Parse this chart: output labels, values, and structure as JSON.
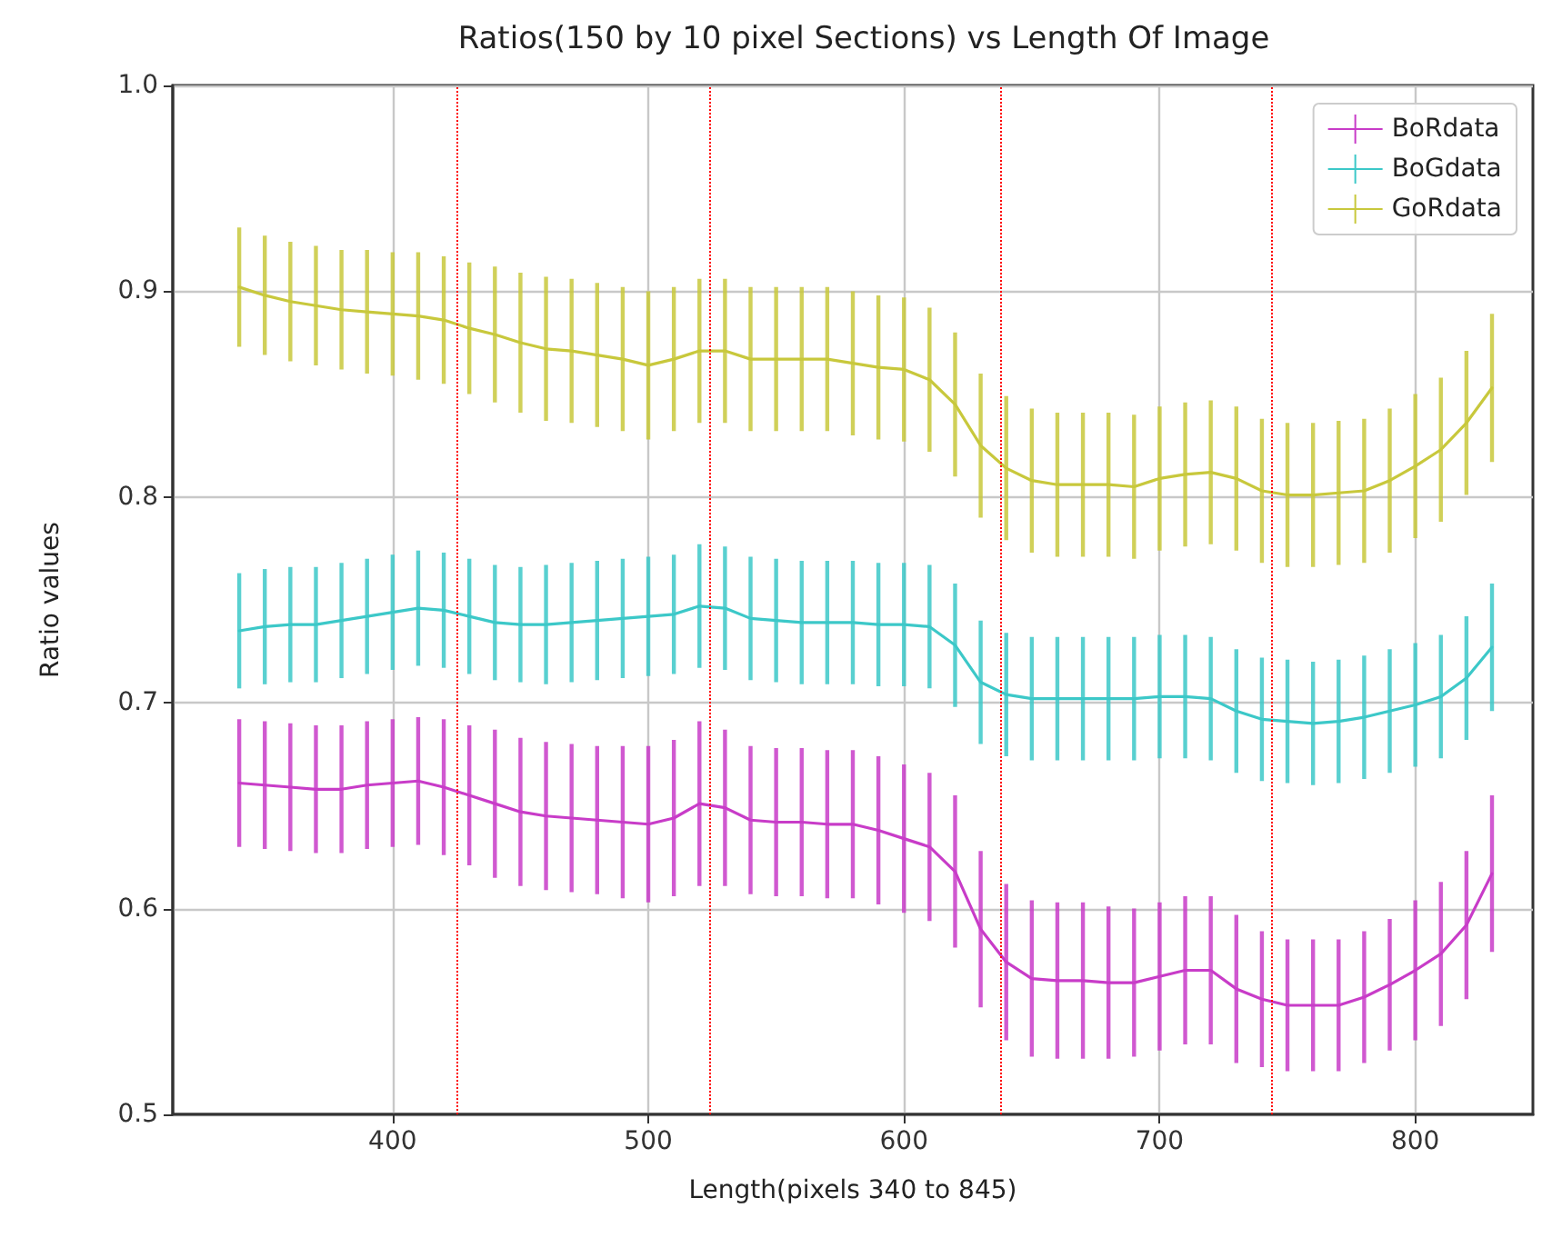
{
  "chart_data": {
    "type": "line",
    "title": "Ratios(150 by 10 pixel Sections) vs Length Of Image",
    "xlabel": "Length(pixels 340 to 845)",
    "ylabel": "Ratio values",
    "x": [
      340,
      350,
      360,
      370,
      380,
      390,
      400,
      410,
      420,
      430,
      440,
      450,
      460,
      470,
      480,
      490,
      500,
      510,
      520,
      530,
      540,
      550,
      560,
      570,
      580,
      590,
      600,
      610,
      620,
      630,
      640,
      650,
      660,
      670,
      680,
      690,
      700,
      710,
      720,
      730,
      740,
      750,
      760,
      770,
      780,
      790,
      800,
      810,
      820,
      830
    ],
    "series": [
      {
        "name": "BoRdata",
        "color": "#c83cc8",
        "values": [
          0.661,
          0.66,
          0.659,
          0.658,
          0.658,
          0.66,
          0.661,
          0.662,
          0.659,
          0.655,
          0.651,
          0.647,
          0.645,
          0.644,
          0.643,
          0.642,
          0.641,
          0.644,
          0.651,
          0.649,
          0.643,
          0.642,
          0.642,
          0.641,
          0.641,
          0.638,
          0.634,
          0.63,
          0.618,
          0.59,
          0.574,
          0.566,
          0.565,
          0.565,
          0.564,
          0.564,
          0.567,
          0.57,
          0.57,
          0.561,
          0.556,
          0.553,
          0.553,
          0.553,
          0.557,
          0.563,
          0.57,
          0.578,
          0.592,
          0.617
        ],
        "errors": [
          0.031,
          0.031,
          0.031,
          0.031,
          0.031,
          0.031,
          0.031,
          0.031,
          0.033,
          0.034,
          0.036,
          0.036,
          0.036,
          0.036,
          0.036,
          0.037,
          0.038,
          0.038,
          0.04,
          0.038,
          0.036,
          0.036,
          0.036,
          0.036,
          0.036,
          0.036,
          0.036,
          0.036,
          0.037,
          0.038,
          0.038,
          0.038,
          0.038,
          0.038,
          0.037,
          0.036,
          0.036,
          0.036,
          0.036,
          0.036,
          0.033,
          0.032,
          0.032,
          0.032,
          0.032,
          0.032,
          0.034,
          0.035,
          0.036,
          0.038
        ]
      },
      {
        "name": "BoGdata",
        "color": "#3cc8c8",
        "values": [
          0.735,
          0.737,
          0.738,
          0.738,
          0.74,
          0.742,
          0.744,
          0.746,
          0.745,
          0.742,
          0.739,
          0.738,
          0.738,
          0.739,
          0.74,
          0.741,
          0.742,
          0.743,
          0.747,
          0.746,
          0.741,
          0.74,
          0.739,
          0.739,
          0.739,
          0.738,
          0.738,
          0.737,
          0.728,
          0.71,
          0.704,
          0.702,
          0.702,
          0.702,
          0.702,
          0.702,
          0.703,
          0.703,
          0.702,
          0.696,
          0.692,
          0.691,
          0.69,
          0.691,
          0.693,
          0.696,
          0.699,
          0.703,
          0.712,
          0.727
        ],
        "errors": [
          0.028,
          0.028,
          0.028,
          0.028,
          0.028,
          0.028,
          0.028,
          0.028,
          0.028,
          0.028,
          0.028,
          0.028,
          0.029,
          0.029,
          0.029,
          0.029,
          0.029,
          0.029,
          0.03,
          0.03,
          0.03,
          0.03,
          0.03,
          0.03,
          0.03,
          0.03,
          0.03,
          0.03,
          0.03,
          0.03,
          0.03,
          0.03,
          0.03,
          0.03,
          0.03,
          0.03,
          0.03,
          0.03,
          0.03,
          0.03,
          0.03,
          0.03,
          0.03,
          0.03,
          0.03,
          0.03,
          0.03,
          0.03,
          0.03,
          0.031
        ]
      },
      {
        "name": "GoRdata",
        "color": "#c8c83c",
        "values": [
          0.902,
          0.898,
          0.895,
          0.893,
          0.891,
          0.89,
          0.889,
          0.888,
          0.886,
          0.882,
          0.879,
          0.875,
          0.872,
          0.871,
          0.869,
          0.867,
          0.864,
          0.867,
          0.871,
          0.871,
          0.867,
          0.867,
          0.867,
          0.867,
          0.865,
          0.863,
          0.862,
          0.857,
          0.845,
          0.825,
          0.814,
          0.808,
          0.806,
          0.806,
          0.806,
          0.805,
          0.809,
          0.811,
          0.812,
          0.809,
          0.803,
          0.801,
          0.801,
          0.802,
          0.803,
          0.808,
          0.815,
          0.823,
          0.836,
          0.853
        ],
        "errors": [
          0.029,
          0.029,
          0.029,
          0.029,
          0.029,
          0.03,
          0.03,
          0.031,
          0.031,
          0.032,
          0.033,
          0.034,
          0.035,
          0.035,
          0.035,
          0.035,
          0.036,
          0.035,
          0.035,
          0.035,
          0.035,
          0.035,
          0.035,
          0.035,
          0.035,
          0.035,
          0.035,
          0.035,
          0.035,
          0.035,
          0.035,
          0.035,
          0.035,
          0.035,
          0.035,
          0.035,
          0.035,
          0.035,
          0.035,
          0.035,
          0.035,
          0.035,
          0.035,
          0.035,
          0.035,
          0.035,
          0.035,
          0.035,
          0.035,
          0.036
        ]
      }
    ],
    "xlim": [
      314,
      846
    ],
    "xticks": [
      400,
      500,
      600,
      700,
      800
    ],
    "ylim": [
      0.5,
      1.0
    ],
    "yticks": [
      0.5,
      0.6,
      0.7,
      0.8,
      0.9,
      {
        "value": 1.0,
        "label": "1.0"
      }
    ],
    "ref_lines": [
      {
        "axis": "x",
        "value": 425,
        "color": "#ff0000",
        "line_style": "dotted"
      },
      {
        "axis": "x",
        "value": 524,
        "color": "#ff0000",
        "line_style": "dotted"
      },
      {
        "axis": "x",
        "value": 638,
        "color": "#ff0000",
        "line_style": "dotted"
      },
      {
        "axis": "x",
        "value": 744,
        "color": "#ff0000",
        "line_style": "dotted"
      }
    ],
    "grid": true,
    "legend": "top right",
    "marker": "none",
    "line_style": "solid"
  }
}
